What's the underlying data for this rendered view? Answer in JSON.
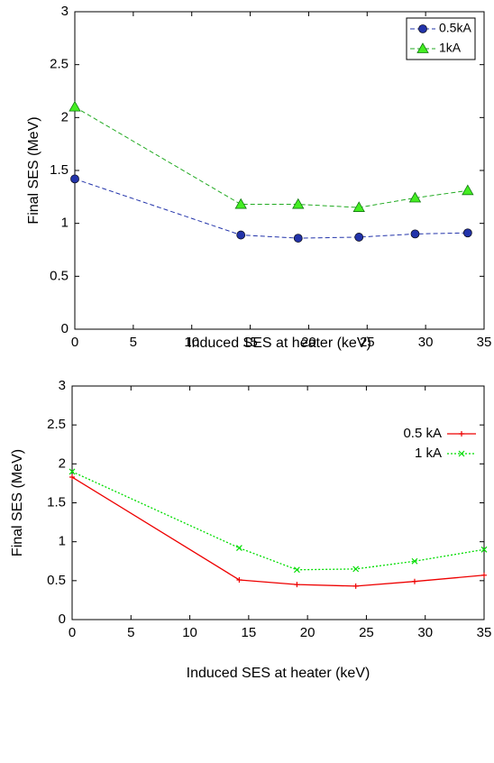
{
  "chart_data": [
    {
      "type": "line",
      "xlabel": "Induced SES at heater (keV)",
      "ylabel": "Final SES (MeV)",
      "x": [
        0,
        14.2,
        19.1,
        24.3,
        29.1,
        33.6
      ],
      "series": [
        {
          "name": "0.5kA",
          "color": "#2233aa",
          "marker": "circle",
          "dash": true,
          "values": [
            1.42,
            0.89,
            0.86,
            0.87,
            0.9,
            0.91
          ]
        },
        {
          "name": "1kA",
          "color": "#22aa22",
          "marker": "triangle",
          "dash": true,
          "values": [
            2.1,
            1.18,
            1.18,
            1.15,
            1.24,
            1.31
          ]
        }
      ],
      "xlim": [
        0,
        35
      ],
      "xticks": [
        0,
        5,
        10,
        15,
        20,
        25,
        30,
        35
      ],
      "ylim": [
        0,
        3
      ],
      "yticks": [
        0,
        0.5,
        1,
        1.5,
        2,
        2.5,
        3
      ],
      "grid": false,
      "legend": "top-right"
    },
    {
      "type": "line",
      "xlabel": "Induced SES at heater (keV)",
      "ylabel": "Final SES (MeV)",
      "x": [
        0,
        14.2,
        19.1,
        24.1,
        29.1,
        35
      ],
      "series": [
        {
          "name": "0.5 kA",
          "color": "#ee0000",
          "marker": "plus",
          "dash": false,
          "values": [
            1.83,
            0.51,
            0.45,
            0.43,
            0.49,
            0.57
          ]
        },
        {
          "name": "1 kA",
          "color": "#00dd00",
          "marker": "cross",
          "dash": true,
          "values": [
            1.9,
            0.92,
            0.64,
            0.65,
            0.75,
            0.9
          ]
        }
      ],
      "xlim": [
        0,
        35
      ],
      "xticks": [
        0,
        5,
        10,
        15,
        20,
        25,
        30,
        35
      ],
      "ylim": [
        0,
        3
      ],
      "yticks": [
        0,
        0.5,
        1,
        1.5,
        2,
        2.5,
        3
      ],
      "grid": false,
      "legend": "top-right"
    }
  ]
}
